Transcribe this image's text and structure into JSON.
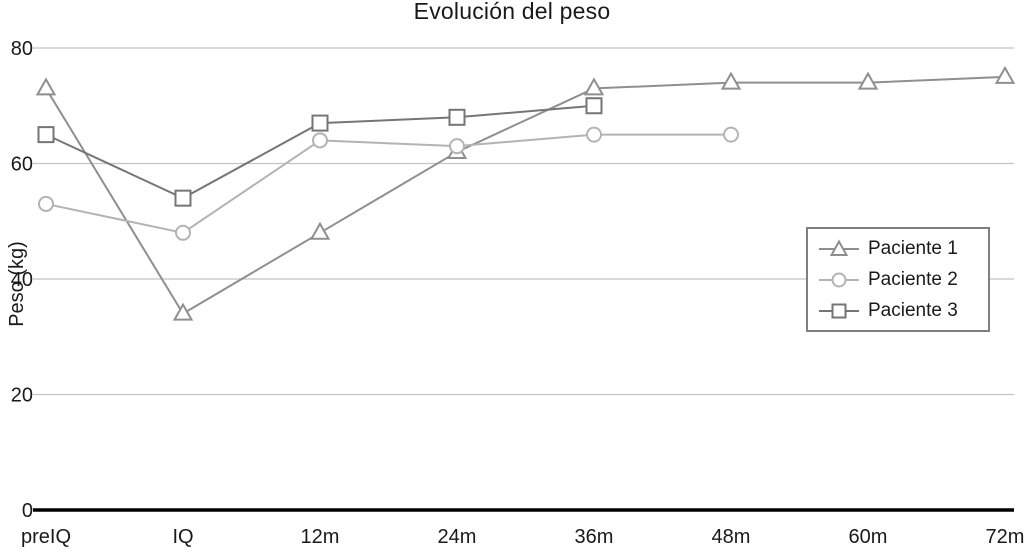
{
  "chart_data": {
    "type": "line",
    "title": "Evolución del peso",
    "xlabel": "",
    "ylabel": "Peso (kg)",
    "categories": [
      "preIQ",
      "IQ",
      "12m",
      "24m",
      "36m",
      "48m",
      "60m",
      "72m"
    ],
    "ylim": [
      0,
      80
    ],
    "yticks": [
      0,
      20,
      40,
      60,
      80
    ],
    "grid": true,
    "legend_position": "middle-right",
    "colors": {
      "grid": "#c4c4c4",
      "axis": "#000000",
      "text": "#1a1a1a",
      "background": "#ffffff"
    },
    "series": [
      {
        "name": "Paciente 1",
        "marker": "triangle",
        "color": "#8f8f8f",
        "values": [
          73,
          34,
          48,
          62,
          73,
          74,
          74,
          75
        ]
      },
      {
        "name": "Paciente 2",
        "marker": "circle",
        "color": "#b3b3b3",
        "values": [
          53,
          48,
          64,
          63,
          65,
          65,
          null,
          null
        ]
      },
      {
        "name": "Paciente 3",
        "marker": "square",
        "color": "#757575",
        "values": [
          65,
          54,
          67,
          68,
          70,
          null,
          null,
          null
        ]
      }
    ]
  }
}
